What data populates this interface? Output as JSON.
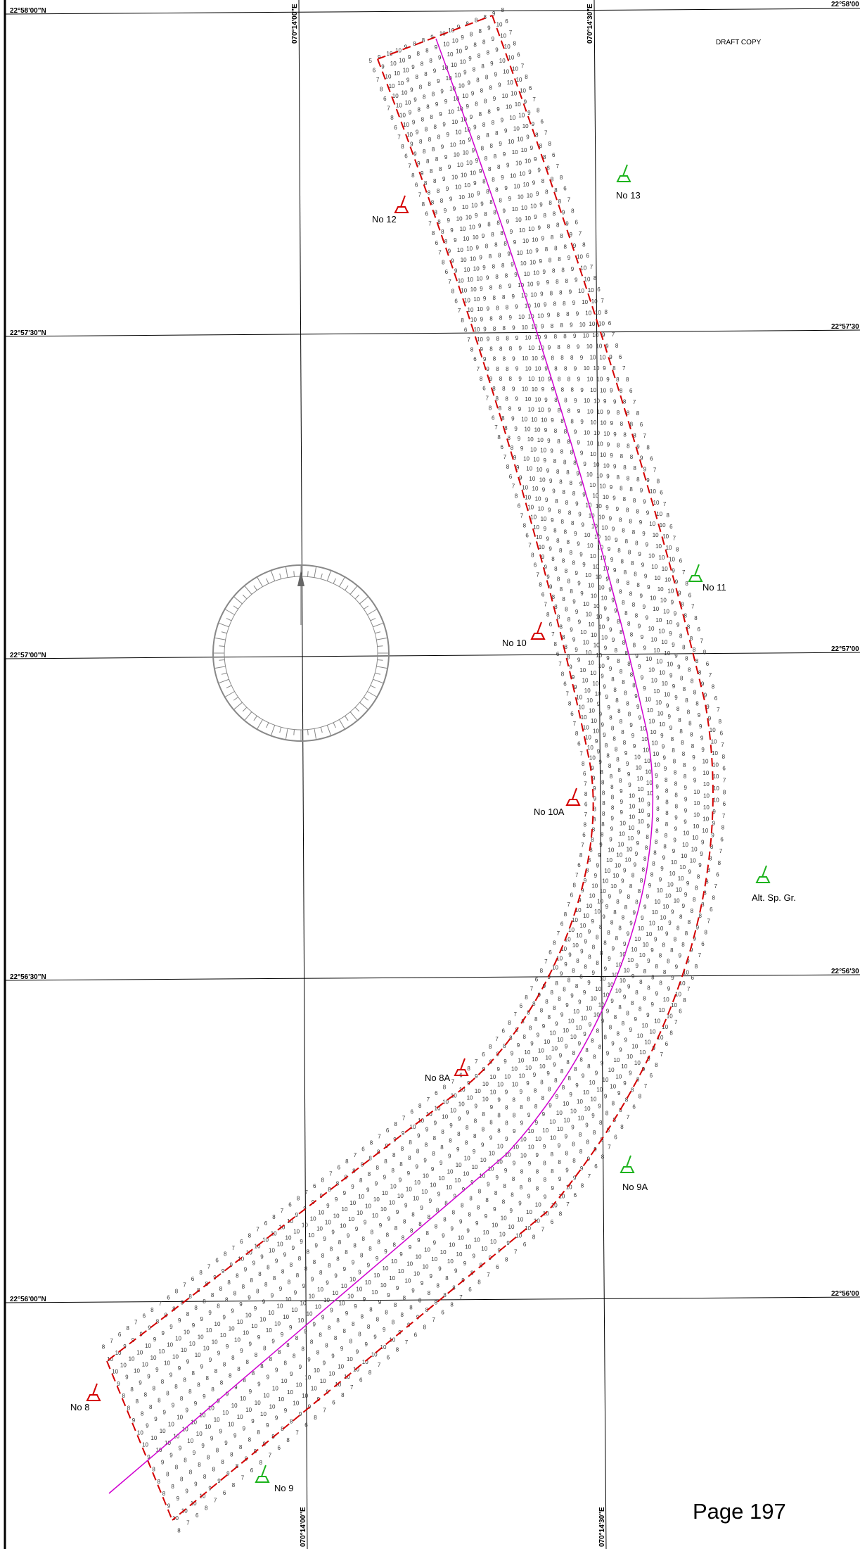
{
  "page_label": "Page 197",
  "draft_label": "DRAFT COPY",
  "latitudes": [
    {
      "left": "22°58'00\"N",
      "right": "22°58'00"
    },
    {
      "left": "22°57'30\"N",
      "right": "22°57'30"
    },
    {
      "left": "22°57'00\"N",
      "right": "22°57'00"
    },
    {
      "left": "22°56'30\"N",
      "right": "22°56'30"
    },
    {
      "left": "22°56'00\"N",
      "right": "22°56'00"
    }
  ],
  "longitudes": [
    {
      "top": "070°14'00\"E",
      "bottom": "070°14'00\"E"
    },
    {
      "top": "070°14'30\"E",
      "bottom": "070°14'30\"E"
    }
  ],
  "buoys": [
    {
      "label": "No 12",
      "color": "red"
    },
    {
      "label": "No 13",
      "color": "green"
    },
    {
      "label": "No 11",
      "color": "green"
    },
    {
      "label": "No 10",
      "color": "red"
    },
    {
      "label": "No 10A",
      "color": "red"
    },
    {
      "label": "Alt. Sp. Gr.",
      "color": "green"
    },
    {
      "label": "No 8A",
      "color": "red"
    },
    {
      "label": "No 9A",
      "color": "green"
    },
    {
      "label": "No 8",
      "color": "red"
    },
    {
      "label": "No 9",
      "color": "green"
    }
  ],
  "colors": {
    "channel_boundary": "#d40000",
    "centerline": "#d000d0",
    "starboard_buoy": "#1db31d",
    "port_buoy": "#d40000",
    "grid": "#000000",
    "soundings": "#333333"
  },
  "compass_rose": {
    "present": true
  }
}
